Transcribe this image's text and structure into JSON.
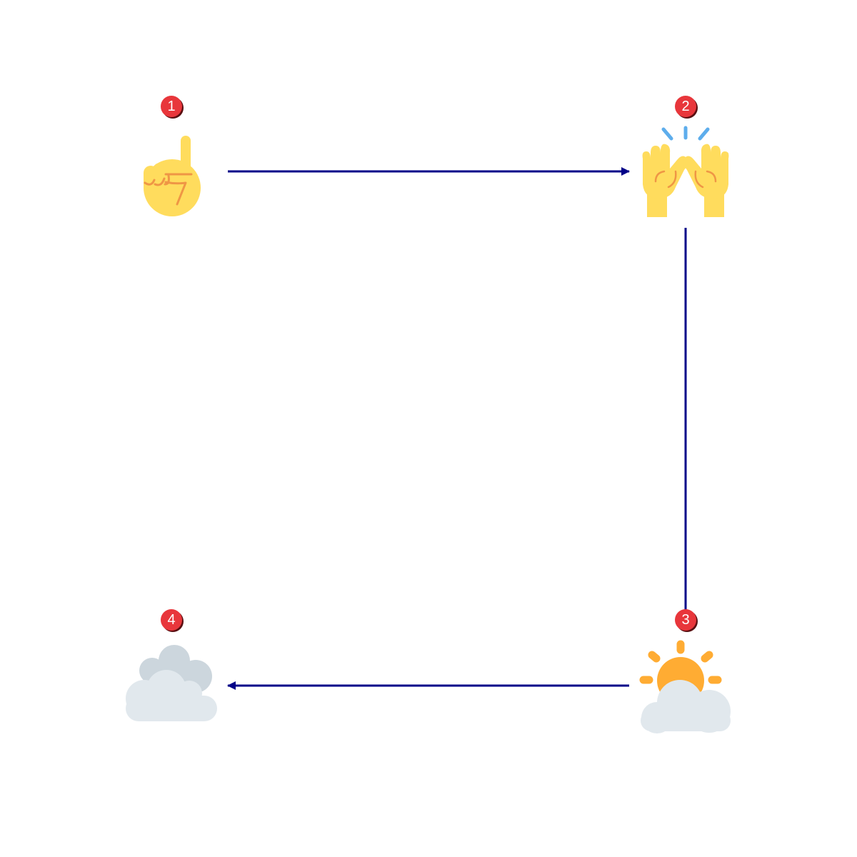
{
  "colors": {
    "arrow": "#000088",
    "badge_fill": "#e8363b",
    "badge_shadow": "#5a0f12",
    "badge_text": "#ffffff"
  },
  "steps": [
    {
      "number": "1",
      "icon": "index-pointing-up-icon"
    },
    {
      "number": "2",
      "icon": "raising-hands-icon"
    },
    {
      "number": "3",
      "icon": "sun-behind-cloud-icon"
    },
    {
      "number": "4",
      "icon": "clouds-icon"
    }
  ],
  "connections": [
    {
      "from": "1",
      "to": "2"
    },
    {
      "from": "2",
      "to": "3"
    },
    {
      "from": "3",
      "to": "4"
    }
  ]
}
